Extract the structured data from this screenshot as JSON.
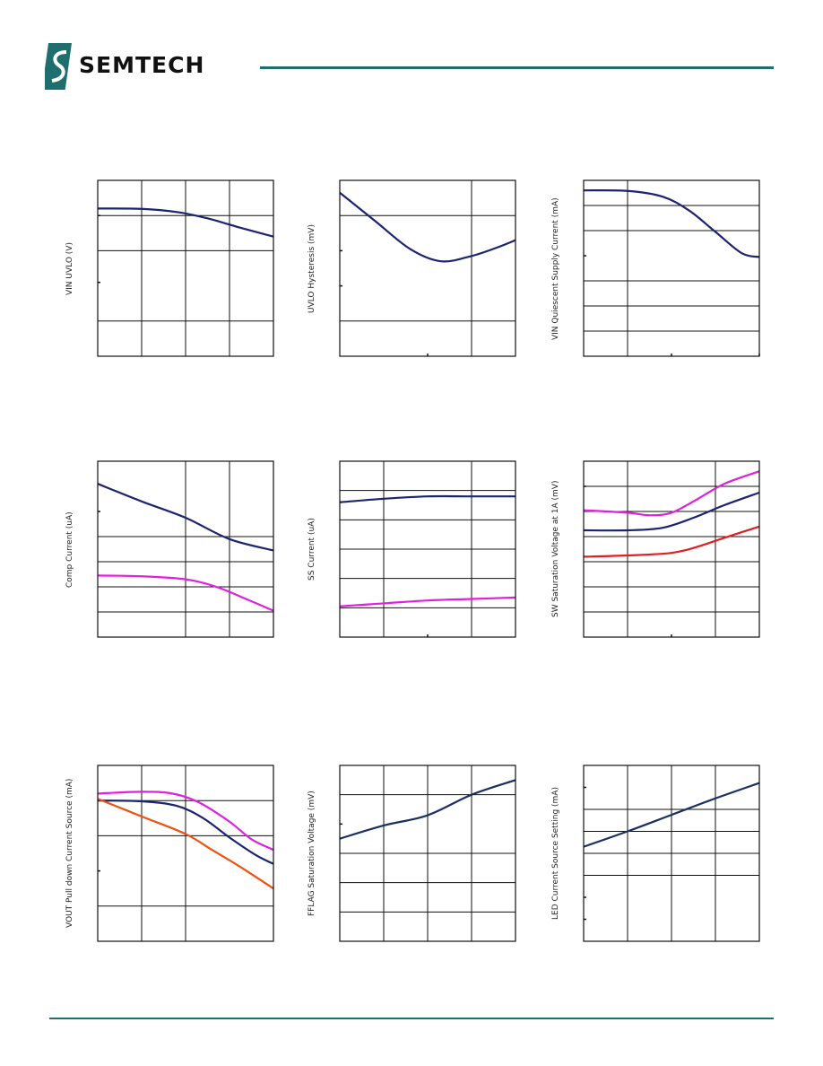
{
  "brand": {
    "name": "SEMTECH",
    "rule_color": "#1f6e6e"
  },
  "charts": [
    {
      "ylabel": "VIN UVLO (V)",
      "chart_data": {
        "type": "line",
        "ylabel": "VIN UVLO (V)",
        "grid": true,
        "xlim": [
          0,
          4
        ],
        "ylim": [
          0,
          5
        ],
        "xticks": 4,
        "yticks": [
          1,
          3,
          4
        ],
        "ytickmarks": [
          2.1,
          4
        ],
        "series": [
          {
            "color": "#1a2470",
            "x": [
              0,
              1,
              1.8,
              2.5,
              3.2,
              4
            ],
            "y": [
              4.2,
              4.19,
              4.1,
              3.92,
              3.67,
              3.4
            ]
          }
        ]
      }
    },
    {
      "ylabel": "UVLO Hysteresis (mV)",
      "chart_data": {
        "type": "line",
        "ylabel": "UVLO Hysteresis (mV)",
        "grid": true,
        "xlim": [
          0,
          4
        ],
        "ylim": [
          0,
          5
        ],
        "xticks": [
          3
        ],
        "yticks": [
          1,
          4
        ],
        "ytickmarks": [
          2,
          3
        ],
        "xtickmarks": [
          2
        ],
        "series": [
          {
            "color": "#1a2470",
            "x": [
              0,
              0.8,
              1.6,
              2.3,
              3,
              3.6,
              4
            ],
            "y": [
              4.65,
              3.85,
              3.05,
              2.7,
              2.85,
              3.1,
              3.3
            ]
          }
        ]
      }
    },
    {
      "ylabel": "VIN Quiescent Supply Current (mA)",
      "chart_data": {
        "type": "line",
        "ylabel": "VIN Quiescent Supply Current (mA)",
        "grid": true,
        "xlim": [
          0,
          4
        ],
        "ylim": [
          0,
          7
        ],
        "xticks": [
          1
        ],
        "yticks": [
          1,
          2,
          3,
          5,
          6
        ],
        "ytickmarks": [
          4
        ],
        "xtickmarks": [
          2,
          4
        ],
        "series": [
          {
            "color": "#1a2470",
            "x": [
              0,
              1,
              1.8,
              2.4,
              3,
              3.6,
              4
            ],
            "y": [
              6.6,
              6.58,
              6.35,
              5.8,
              4.95,
              4.1,
              3.95
            ]
          }
        ]
      }
    },
    {
      "ylabel": "Comp Current (uA)",
      "chart_data": {
        "type": "line",
        "ylabel": "Comp Current (uA)",
        "grid": true,
        "xlim": [
          0,
          4
        ],
        "ylim": [
          0,
          7
        ],
        "xticks": [
          2,
          3
        ],
        "yticks": [
          1,
          2,
          3,
          4
        ],
        "ytickmarks": [
          5
        ],
        "xtickmarks": [],
        "series": [
          {
            "color": "#1a2470",
            "x": [
              0,
              1,
              2,
              3,
              4
            ],
            "y": [
              6.1,
              5.4,
              4.75,
              3.9,
              3.45
            ]
          },
          {
            "color": "#e020e0",
            "x": [
              0,
              1,
              2,
              2.7,
              3.4,
              4
            ],
            "y": [
              2.45,
              2.42,
              2.3,
              2.0,
              1.5,
              1.05
            ]
          }
        ]
      }
    },
    {
      "ylabel": "SS Current (uA)",
      "chart_data": {
        "type": "line",
        "ylabel": "SS Current (uA)",
        "grid": true,
        "xlim": [
          0,
          4
        ],
        "ylim": [
          0,
          6
        ],
        "xticks": [
          1,
          3
        ],
        "yticks": [
          1,
          2,
          3,
          4,
          5
        ],
        "ytickmarks": [],
        "xtickmarks": [
          2
        ],
        "series": [
          {
            "color": "#1a2470",
            "x": [
              0,
              1,
              2,
              3,
              4
            ],
            "y": [
              4.6,
              4.72,
              4.8,
              4.8,
              4.8
            ]
          },
          {
            "color": "#e020e0",
            "x": [
              0,
              1,
              2,
              3,
              4
            ],
            "y": [
              1.05,
              1.15,
              1.25,
              1.3,
              1.35
            ]
          }
        ]
      }
    },
    {
      "ylabel": "SW Saturation Voltage at 1A (mV)",
      "chart_data": {
        "type": "line",
        "ylabel": "SW Saturation Voltage at 1A (mV)",
        "grid": true,
        "xlim": [
          0,
          4
        ],
        "ylim": [
          0,
          7
        ],
        "xticks": [
          1,
          3
        ],
        "yticks": [
          1,
          2,
          3,
          4,
          5,
          6
        ],
        "ytickmarks": [
          6
        ],
        "xtickmarks": [
          2
        ],
        "series": [
          {
            "color": "#e020e0",
            "x": [
              0,
              1,
              1.5,
              2,
              2.6,
              3.2,
              4
            ],
            "y": [
              5.05,
              4.95,
              4.85,
              4.95,
              5.5,
              6.1,
              6.6
            ]
          },
          {
            "color": "#1a2470",
            "x": [
              0,
              1,
              1.8,
              2.5,
              3.2,
              4
            ],
            "y": [
              4.25,
              4.25,
              4.35,
              4.75,
              5.25,
              5.75
            ]
          },
          {
            "color": "#e02020",
            "x": [
              0,
              1,
              2,
              2.6,
              3.2,
              4
            ],
            "y": [
              3.2,
              3.25,
              3.35,
              3.6,
              3.95,
              4.4
            ]
          }
        ]
      }
    },
    {
      "ylabel": "VOUT Pull down Current Source (mA)",
      "chart_data": {
        "type": "line",
        "ylabel": "VOUT Pull down Current Source (mA)",
        "grid": true,
        "xlim": [
          0,
          4
        ],
        "ylim": [
          0,
          5
        ],
        "xticks": [
          1,
          2
        ],
        "yticks": [
          1,
          3,
          4
        ],
        "ytickmarks": [
          2,
          4
        ],
        "xtickmarks": [],
        "series": [
          {
            "color": "#e020e0",
            "x": [
              0,
              1,
              1.7,
              2.3,
              3,
              3.5,
              4
            ],
            "y": [
              4.2,
              4.25,
              4.2,
              3.95,
              3.4,
              2.9,
              2.6
            ]
          },
          {
            "color": "#1a2470",
            "x": [
              0,
              1,
              1.8,
              2.4,
              3,
              3.6,
              4
            ],
            "y": [
              4.0,
              3.98,
              3.85,
              3.5,
              2.95,
              2.45,
              2.2
            ]
          },
          {
            "color": "#f05010",
            "x": [
              0,
              1,
              2,
              2.6,
              3.2,
              4
            ],
            "y": [
              4.05,
              3.55,
              3.05,
              2.6,
              2.15,
              1.5
            ]
          }
        ]
      }
    },
    {
      "ylabel": "FFLAG Saturation Voltage (mV)",
      "chart_data": {
        "type": "line",
        "ylabel": "FFLAG Saturation Voltage (mV)",
        "grid": true,
        "xlim": [
          0,
          4
        ],
        "ylim": [
          0,
          6
        ],
        "xticks": [
          1,
          2,
          3
        ],
        "yticks": [
          1,
          2,
          3,
          5
        ],
        "ytickmarks": [
          4
        ],
        "xtickmarks": [],
        "series": [
          {
            "color": "#1a3060",
            "x": [
              0,
              1,
              2,
              3,
              4
            ],
            "y": [
              3.5,
              3.95,
              4.3,
              5.0,
              5.5
            ]
          }
        ]
      }
    },
    {
      "ylabel": "LED Current Source Setting (mA)",
      "chart_data": {
        "type": "line",
        "ylabel": "LED Current Source Setting (mA)",
        "grid": true,
        "xlim": [
          0,
          4
        ],
        "ylim": [
          0,
          8
        ],
        "xticks": [
          1,
          2,
          3
        ],
        "yticks": [
          3,
          4,
          5,
          6
        ],
        "ytickmarks": [
          1,
          2,
          7
        ],
        "xtickmarks": [],
        "series": [
          {
            "color": "#1a3060",
            "x": [
              0,
              1,
              2,
              3,
              4
            ],
            "y": [
              4.3,
              5.0,
              5.75,
              6.5,
              7.2
            ]
          }
        ]
      }
    }
  ]
}
